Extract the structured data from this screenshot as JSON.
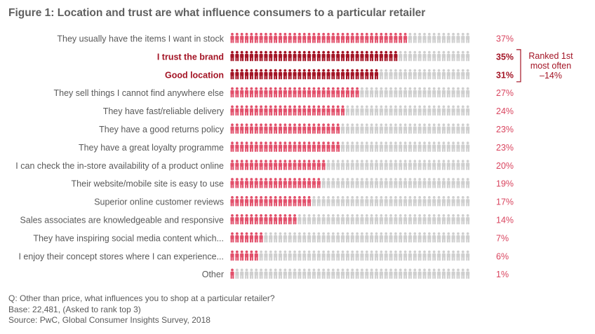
{
  "title": "Figure 1: Location and trust are what influence consumers to a particular retailer",
  "chart_data": {
    "type": "bar",
    "subtype": "pictogram",
    "icon": "person-icon",
    "icons_per_row": 50,
    "icon_value_pct": 1,
    "categories": [
      "They usually have the items I want in stock",
      "I trust the brand",
      "Good location",
      "They sell things I cannot find anywhere else",
      "They have fast/reliable delivery",
      "They have a good returns policy",
      "They have a great loyalty programme",
      "I can check the in-store availability of a product online",
      "Their website/mobile site is easy to use",
      "Superior online customer reviews",
      "Sales associates are knowledgeable and responsive",
      "They have inspiring social media content which...",
      "I enjoy their concept stores where I can experience...",
      "Other"
    ],
    "values": [
      37,
      35,
      31,
      27,
      24,
      23,
      23,
      20,
      19,
      17,
      14,
      7,
      6,
      1
    ],
    "value_labels": [
      "37%",
      "35%",
      "31%",
      "27%",
      "24%",
      "23%",
      "23%",
      "20%",
      "19%",
      "17%",
      "14%",
      "7%",
      "6%",
      "1%"
    ],
    "highlighted": [
      false,
      true,
      true,
      false,
      false,
      false,
      false,
      false,
      false,
      false,
      false,
      false,
      false,
      false
    ],
    "annotation": {
      "lines": [
        "Ranked 1st",
        "most often",
        "–14%"
      ],
      "applies_to": [
        "I trust the brand",
        "Good location"
      ]
    },
    "colors": {
      "filled": "#e2506b",
      "highlight": "#a31425",
      "empty": "#cfcfcf"
    }
  },
  "footer": {
    "question": "Q: Other than price, what influences you to shop at a particular retailer?",
    "base": "Base: 22,481, (Asked to rank top 3)",
    "source": "Source: PwC, Global Consumer Insights Survey, 2018"
  }
}
